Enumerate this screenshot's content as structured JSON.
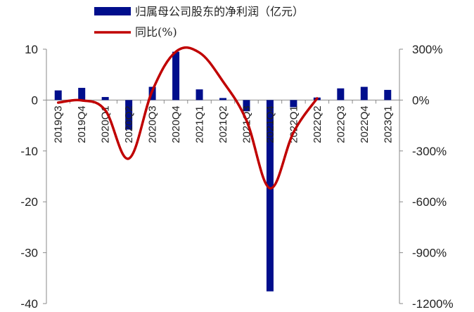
{
  "chart_data": {
    "type": "bar",
    "categories": [
      "2019Q3",
      "2019Q4",
      "2020Q1",
      "2020Q2",
      "2020Q3",
      "2020Q4",
      "2021Q1",
      "2021Q2",
      "2021Q3",
      "2021Q4",
      "2022Q1",
      "2022Q2",
      "2022Q3",
      "2022Q4",
      "2023Q1"
    ],
    "series": [
      {
        "name": "归属母公司股东的净利润（亿元）",
        "type": "bar",
        "axis": "left",
        "color": "#000e8c",
        "values": [
          1.9,
          2.4,
          0.6,
          -5.8,
          2.6,
          9.5,
          2.1,
          0.4,
          -2.2,
          -37.6,
          -1.4,
          0.5,
          2.3,
          2.6,
          2.0
        ]
      },
      {
        "name": "同比(%)",
        "type": "line",
        "axis": "right",
        "color": "#c00000",
        "values": [
          -15,
          -2,
          -60,
          -345,
          55,
          285,
          280,
          110,
          -120,
          -520,
          -190,
          10,
          null,
          null,
          null
        ]
      }
    ],
    "y_left": {
      "ticks": [
        10,
        0,
        -10,
        -20,
        -30,
        -40
      ],
      "ylim": [
        -40,
        10
      ]
    },
    "y_right": {
      "ticks": [
        "300%",
        "0%",
        "-300%",
        "-600%",
        "-900%",
        "-1200%"
      ],
      "values": [
        300,
        0,
        -300,
        -600,
        -900,
        -1200
      ],
      "ylim": [
        -1200,
        300
      ]
    },
    "legend_position": "top-center",
    "grid": false
  }
}
